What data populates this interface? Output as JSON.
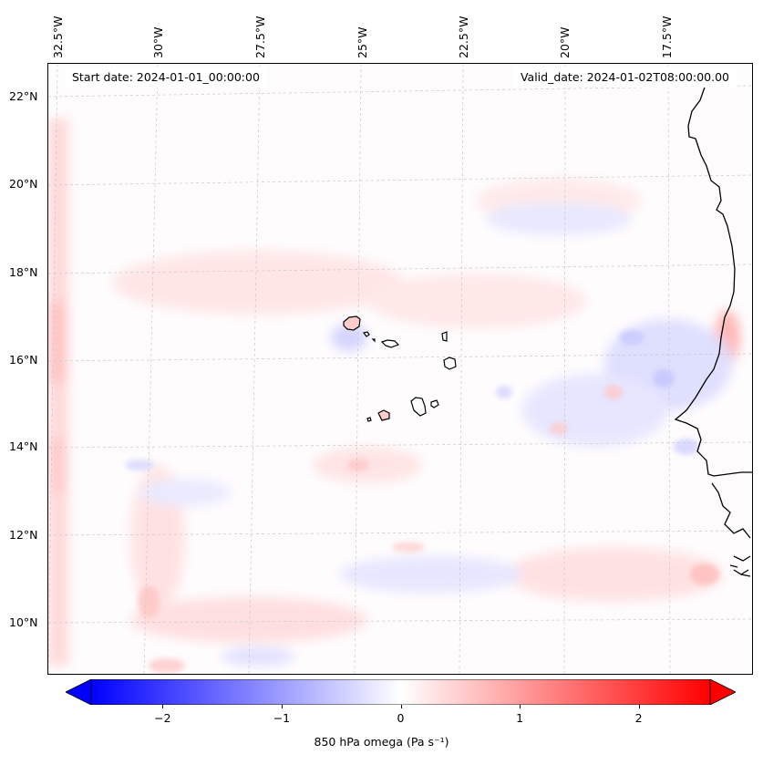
{
  "map": {
    "start_date": "Start date: 2024-01-01_00:00:00",
    "valid_date": "Valid_date: 2024-01-02T08:00:00.00",
    "variable": "850 hPa omega",
    "units": "Pa s⁻¹",
    "region": "Eastern tropical Atlantic / Cape Verde",
    "lon_labels": [
      "32.5°W",
      "30°W",
      "27.5°W",
      "25°W",
      "22.5°W",
      "20°W",
      "17.5°W"
    ],
    "lat_labels": [
      "22°N",
      "20°N",
      "18°N",
      "16°N",
      "14°N",
      "12°N",
      "10°N"
    ]
  },
  "colorbar": {
    "label": "850 hPa omega (Pa s⁻¹)",
    "ticks": [
      "−2",
      "−1",
      "0",
      "1",
      "2"
    ],
    "min": -2.6,
    "max": 2.6,
    "colormap": "bwr",
    "low_color": "#0000ff",
    "mid_color": "#ffffff",
    "high_color": "#ff0000"
  }
}
